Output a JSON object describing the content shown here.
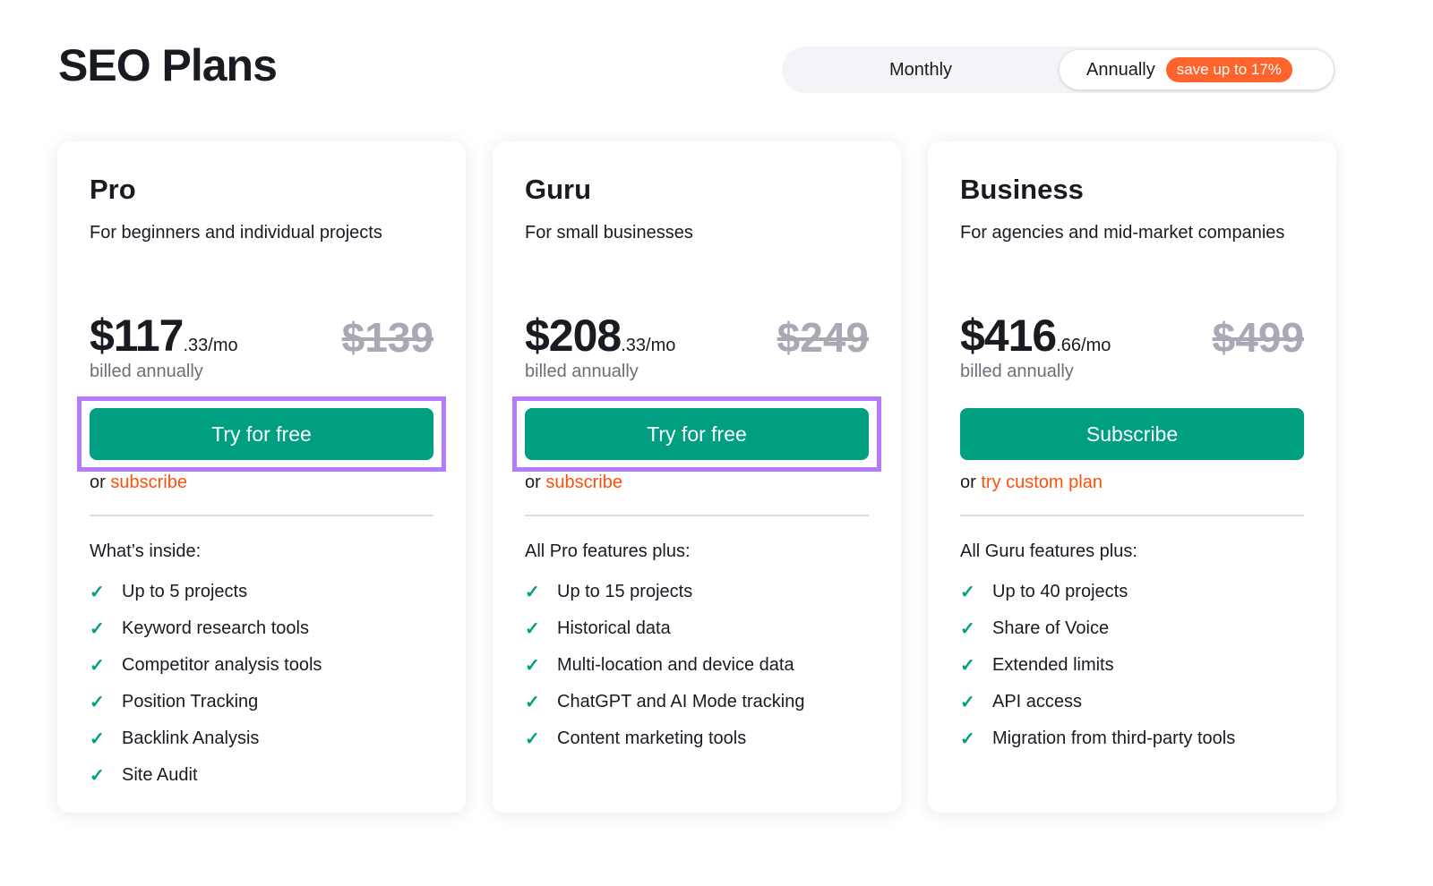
{
  "page": {
    "title": "SEO Plans"
  },
  "billing_toggle": {
    "monthly": "Monthly",
    "annually": "Annually",
    "badge": "save up to 17%",
    "selected": "Annually"
  },
  "colors": {
    "accent": "#009f81",
    "badge": "#ff642d",
    "link": "#ff4f0a",
    "highlight": "#b57bff"
  },
  "plans": [
    {
      "name": "Pro",
      "description": "For beginners and individual projects",
      "price": "$117",
      "cents": ".33/mo",
      "old_price": "$139",
      "billing": "billed annually",
      "button": "Try for free",
      "highlighted": true,
      "or": "or",
      "alt_link": "subscribe",
      "features_heading": "What’s inside:",
      "features": [
        "Up to 5 projects",
        "Keyword research tools",
        "Competitor analysis tools",
        "Position Tracking",
        "Backlink Analysis",
        "Site Audit"
      ]
    },
    {
      "name": "Guru",
      "description": "For small businesses",
      "price": "$208",
      "cents": ".33/mo",
      "old_price": "$249",
      "billing": "billed annually",
      "button": "Try for free",
      "highlighted": true,
      "or": "or",
      "alt_link": "subscribe",
      "features_heading": "All Pro features plus:",
      "features": [
        "Up to 15 projects",
        "Historical data",
        "Multi-location and device data",
        "ChatGPT and AI Mode tracking",
        "Content marketing tools"
      ]
    },
    {
      "name": "Business",
      "description": "For agencies and mid-market companies",
      "price": "$416",
      "cents": ".66/mo",
      "old_price": "$499",
      "billing": "billed annually",
      "button": "Subscribe",
      "highlighted": false,
      "or": "or",
      "alt_link": "try custom plan",
      "features_heading": "All Guru features plus:",
      "features": [
        "Up to 40 projects",
        "Share of Voice",
        "Extended limits",
        "API access",
        "Migration from third-party tools"
      ]
    }
  ]
}
